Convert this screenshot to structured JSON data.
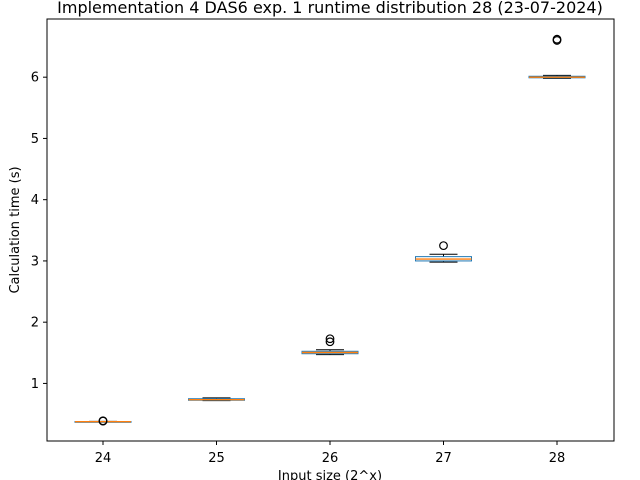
{
  "chart_data": {
    "type": "box",
    "title": "Implementation 4 DAS6 exp. 1 runtime distribution 28 (23-07-2024)",
    "xlabel": "Input size (2^x)",
    "ylabel": "Calculation time (s)",
    "categories": [
      "24",
      "25",
      "26",
      "27",
      "28"
    ],
    "ylim": [
      0.06,
      6.95
    ],
    "yticks": [
      1,
      2,
      3,
      4,
      5,
      6
    ],
    "grid": false,
    "colors": {
      "box": "#1f77b4",
      "median": "#ff7f0e",
      "whisker": "#000000",
      "flier": "#000000"
    },
    "boxes": [
      {
        "category": "24",
        "whisker_low": 0.37,
        "q1": 0.372,
        "median": 0.375,
        "q3": 0.378,
        "whisker_high": 0.381,
        "fliers": [
          0.385,
          0.39
        ]
      },
      {
        "category": "25",
        "whisker_low": 0.72,
        "q1": 0.725,
        "median": 0.735,
        "q3": 0.75,
        "whisker_high": 0.765,
        "fliers": []
      },
      {
        "category": "26",
        "whisker_low": 1.47,
        "q1": 1.485,
        "median": 1.505,
        "q3": 1.525,
        "whisker_high": 1.55,
        "fliers": [
          1.68,
          1.73
        ]
      },
      {
        "category": "27",
        "whisker_low": 2.98,
        "q1": 3.0,
        "median": 3.03,
        "q3": 3.07,
        "whisker_high": 3.11,
        "fliers": [
          3.25
        ]
      },
      {
        "category": "28",
        "whisker_low": 5.98,
        "q1": 5.99,
        "median": 6.0,
        "q3": 6.015,
        "whisker_high": 6.03,
        "fliers": [
          6.6,
          6.62
        ]
      }
    ]
  }
}
